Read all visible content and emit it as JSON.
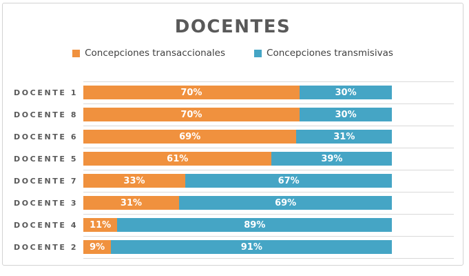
{
  "chart_data": {
    "type": "bar",
    "orientation": "horizontal",
    "stacked": true,
    "title": "DOCENTES",
    "categories": [
      "DOCENTE 1",
      "DOCENTE 8",
      "DOCENTE 6",
      "DOCENTE 5",
      "DOCENTE 7",
      "DOCENTE 3",
      "DOCENTE 4",
      "DOCENTE 2"
    ],
    "series": [
      {
        "name": "Concepciones transaccionales",
        "color": "#F0913E",
        "values": [
          70,
          70,
          69,
          61,
          33,
          31,
          11,
          9
        ]
      },
      {
        "name": "Concepciones transmisivas",
        "color": "#45A5C5",
        "values": [
          30,
          30,
          31,
          39,
          67,
          69,
          89,
          91
        ]
      }
    ],
    "value_suffix": "%",
    "xlim": [
      0,
      120
    ],
    "axis_tick_labels_visible": false,
    "grid": "category-separator-lines",
    "legend_position": "top",
    "data_label_color": "#FFFFFF",
    "title_color": "#595959",
    "category_label_color": "#595959",
    "legend_text_color": "#404040",
    "gridline_color": "#D9D9D9",
    "frame_border_color": "#D2D2D2"
  }
}
